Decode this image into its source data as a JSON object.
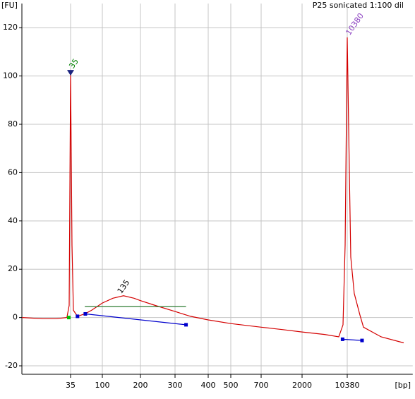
{
  "chart_data": {
    "type": "line",
    "title": "P25 sonicated 1:100 dil",
    "y_label": "[FU]",
    "x_label": "[bp]",
    "x": [
      7,
      14,
      22,
      31,
      33.4,
      35,
      36.7,
      38.4,
      44,
      56,
      70,
      100,
      121,
      147,
      178,
      200,
      238,
      300,
      343,
      400,
      500,
      700,
      1204,
      2000,
      4560,
      7620,
      8890,
      9620,
      10380,
      11210,
      11800,
      13400,
      16500,
      18760,
      35700,
      81300
    ],
    "series": [
      {
        "color": "#d40000",
        "values": [
          0,
          -0.5,
          -0.5,
          0,
          5,
          101,
          30,
          3,
          0.5,
          1.5,
          3,
          6,
          8,
          9,
          8,
          7,
          5,
          2.5,
          0.5,
          -1,
          -2.5,
          -4,
          -5,
          -6,
          -7,
          -8,
          -3,
          30,
          116,
          60,
          25,
          10,
          1,
          -4,
          -8,
          -10.5
        ]
      }
    ],
    "xlim": [
      7,
      113000
    ],
    "ylim": [
      -23.5,
      130
    ],
    "xticks": [
      35,
      100,
      200,
      300,
      400,
      500,
      700,
      2000,
      10380
    ],
    "yticks": [
      -20,
      0,
      20,
      40,
      60,
      80,
      100,
      120
    ],
    "grid": true,
    "peaks": [
      {
        "label": "35",
        "x": 35,
        "y": 101,
        "color": "#008000",
        "marker": "triangle"
      },
      {
        "label": "135",
        "x": 135,
        "y": 9,
        "color": "#000000"
      },
      {
        "label": "10380",
        "x": 10380,
        "y": 116,
        "color": "#8a3fc0"
      }
    ],
    "region": {
      "from": 56,
      "to": 330,
      "y": 4.5,
      "color": "#2e7d32"
    },
    "baseline": [
      {
        "x": [
          57,
          330
        ],
        "y": [
          1.5,
          -3
        ],
        "color": "#0000cc"
      },
      {
        "x": [
          8760,
          17800
        ],
        "y": [
          -9,
          -9.5
        ],
        "color": "#0000cc"
      }
    ],
    "markers": [
      {
        "x": 33,
        "y": 0,
        "color": "#00c000"
      },
      {
        "x": 44,
        "y": 0.5,
        "color": "#0000cc"
      }
    ]
  }
}
